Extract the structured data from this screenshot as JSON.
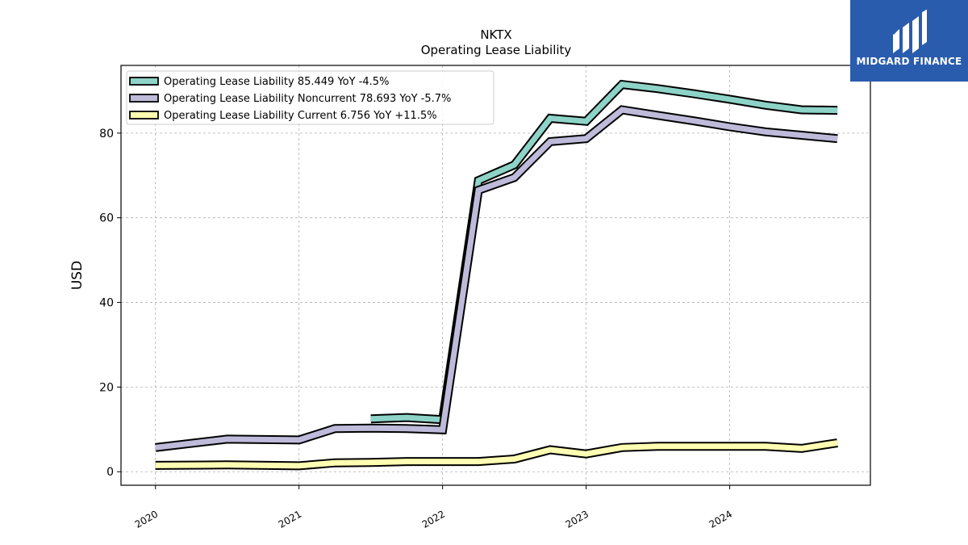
{
  "title": "NKTX",
  "subtitle": "Operating Lease Liability",
  "logo": {
    "text": "MIDGARD FINANCE",
    "bg_color": "#2a5cad"
  },
  "chart_data": {
    "type": "line",
    "ylabel": "USD",
    "xlabel": "",
    "ylim": [
      -3.2,
      96
    ],
    "xlim": [
      2019.76,
      2024.98
    ],
    "yticks": [
      0,
      20,
      40,
      60,
      80
    ],
    "xticks": [
      {
        "value": 2020,
        "label": "2020"
      },
      {
        "value": 2021,
        "label": "2021"
      },
      {
        "value": 2022,
        "label": "2022"
      },
      {
        "value": 2023,
        "label": "2023"
      },
      {
        "value": 2024,
        "label": "2024"
      }
    ],
    "grid": true,
    "legend_position": "top-left",
    "series": [
      {
        "name": "Operating Lease Liability",
        "legend": "Operating Lease Liability  85.449 YoY -4.5%",
        "color": "#8dd3c7",
        "x": [
          2021.5,
          2021.75,
          2022.0,
          2022.25,
          2022.5,
          2022.75,
          2023.0,
          2023.25,
          2023.5,
          2023.75,
          2024.0,
          2024.25,
          2024.5,
          2024.75
        ],
        "y": [
          12.5,
          12.8,
          12.3,
          68.8,
          72.5,
          83.5,
          82.8,
          91.5,
          90.5,
          89.3,
          88.0,
          86.6,
          85.5,
          85.4
        ]
      },
      {
        "name": "Operating Lease Liability Noncurrent",
        "legend": "Operating Lease Liability Noncurrent  78.693 YoY -5.7%",
        "color": "#bebada",
        "x": [
          2020.0,
          2020.5,
          2021.0,
          2021.25,
          2021.5,
          2021.75,
          2022.0,
          2022.25,
          2022.5,
          2022.75,
          2023.0,
          2023.25,
          2023.5,
          2023.75,
          2024.0,
          2024.25,
          2024.5,
          2024.75
        ],
        "y": [
          5.7,
          7.7,
          7.5,
          10.2,
          10.3,
          10.2,
          9.9,
          66.5,
          69.5,
          78.0,
          78.7,
          85.5,
          84.2,
          82.9,
          81.5,
          80.3,
          79.5,
          78.7
        ]
      },
      {
        "name": "Operating Lease Liability Current",
        "legend": "Operating Lease Liability Current  6.756 YoY +11.5%",
        "color": "#ffffb3",
        "x": [
          2020.0,
          2020.5,
          2021.0,
          2021.25,
          2021.5,
          2021.75,
          2022.0,
          2022.25,
          2022.5,
          2022.75,
          2023.0,
          2023.25,
          2023.5,
          2023.75,
          2024.0,
          2024.25,
          2024.5,
          2024.75
        ],
        "y": [
          1.5,
          1.6,
          1.4,
          2.1,
          2.2,
          2.4,
          2.4,
          2.4,
          3.0,
          5.2,
          4.2,
          5.7,
          6.0,
          6.0,
          6.0,
          6.0,
          5.5,
          6.8
        ]
      }
    ]
  }
}
